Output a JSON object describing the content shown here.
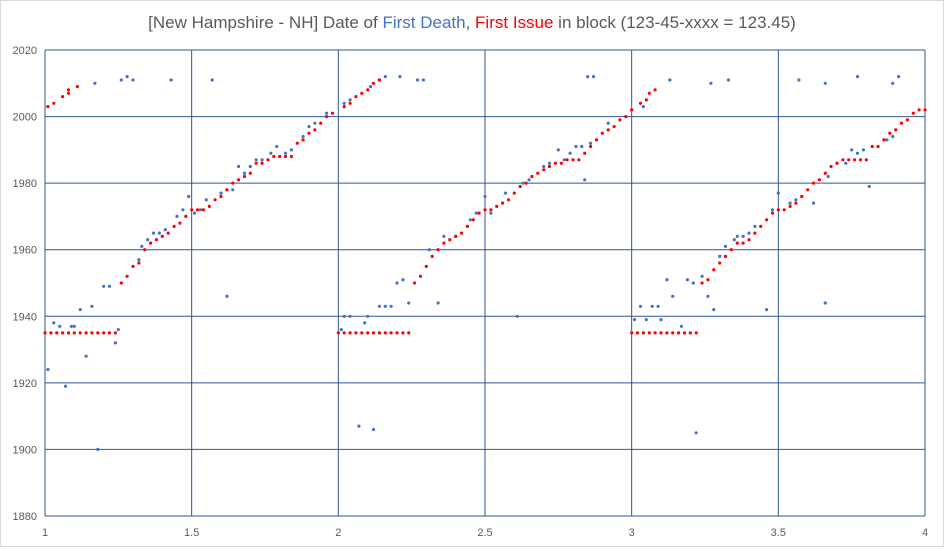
{
  "chart_data": {
    "type": "scatter",
    "title": {
      "prefix": "[New Hampshire - NH] Date of ",
      "first_death": "First Death",
      "sep": ", ",
      "first_issue": "First Issue",
      "suffix": " in block (123-45-xxxx = 123.45)"
    },
    "xlim": [
      1,
      4
    ],
    "ylim": [
      1880,
      2020
    ],
    "x_ticks": [
      "1",
      "1.5",
      "2",
      "2.5",
      "3",
      "3.5",
      "4"
    ],
    "y_ticks": [
      "1880",
      "1900",
      "1920",
      "1940",
      "1960",
      "1980",
      "2000",
      "2020"
    ],
    "grid": true,
    "legend": "none",
    "series": [
      {
        "key": "first_death",
        "color": "#4472C4",
        "points": [
          [
            1.01,
            1924
          ],
          [
            1.03,
            1938
          ],
          [
            1.05,
            1937
          ],
          [
            1.07,
            1919
          ],
          [
            1.09,
            1937
          ],
          [
            1.1,
            1937
          ],
          [
            1.12,
            1942
          ],
          [
            1.14,
            1928
          ],
          [
            1.16,
            1943
          ],
          [
            1.17,
            2010
          ],
          [
            1.18,
            1900
          ],
          [
            1.2,
            1949
          ],
          [
            1.22,
            1949
          ],
          [
            1.24,
            1932
          ],
          [
            1.25,
            1936
          ],
          [
            1.26,
            2011
          ],
          [
            1.28,
            2012
          ],
          [
            1.3,
            2011
          ],
          [
            1.32,
            1957
          ],
          [
            1.33,
            1961
          ],
          [
            1.35,
            1963
          ],
          [
            1.37,
            1965
          ],
          [
            1.39,
            1965
          ],
          [
            1.41,
            1966
          ],
          [
            1.43,
            2011
          ],
          [
            1.45,
            1970
          ],
          [
            1.47,
            1972
          ],
          [
            1.49,
            1976
          ],
          [
            1.51,
            1971
          ],
          [
            1.53,
            1972
          ],
          [
            1.55,
            1975
          ],
          [
            1.57,
            2011
          ],
          [
            1.6,
            1977
          ],
          [
            1.62,
            1946
          ],
          [
            1.62,
            1978
          ],
          [
            1.64,
            1978
          ],
          [
            1.66,
            1985
          ],
          [
            1.68,
            1983
          ],
          [
            1.7,
            1985
          ],
          [
            1.72,
            1987
          ],
          [
            1.74,
            1987
          ],
          [
            1.77,
            1989
          ],
          [
            1.79,
            1991
          ],
          [
            1.82,
            1989
          ],
          [
            1.84,
            1990
          ],
          [
            1.88,
            1994
          ],
          [
            1.9,
            1997
          ],
          [
            1.92,
            1998
          ],
          [
            1.96,
            2001
          ],
          [
            2.01,
            1936
          ],
          [
            2.02,
            1940
          ],
          [
            2.02,
            2004
          ],
          [
            2.04,
            1940
          ],
          [
            2.04,
            2005
          ],
          [
            2.07,
            1907
          ],
          [
            2.09,
            1938
          ],
          [
            2.1,
            1940
          ],
          [
            2.11,
            2009
          ],
          [
            2.12,
            1906
          ],
          [
            2.14,
            2011
          ],
          [
            2.14,
            1943
          ],
          [
            2.16,
            2012
          ],
          [
            2.16,
            1943
          ],
          [
            2.18,
            1943
          ],
          [
            2.2,
            1950
          ],
          [
            2.21,
            2012
          ],
          [
            2.22,
            1951
          ],
          [
            2.24,
            1944
          ],
          [
            2.27,
            2011
          ],
          [
            2.29,
            2011
          ],
          [
            2.31,
            1960
          ],
          [
            2.34,
            1944
          ],
          [
            2.36,
            1964
          ],
          [
            2.4,
            1964
          ],
          [
            2.45,
            1969
          ],
          [
            2.47,
            1971
          ],
          [
            2.5,
            1976
          ],
          [
            2.52,
            1971
          ],
          [
            2.57,
            1977
          ],
          [
            2.61,
            1940
          ],
          [
            2.63,
            1980
          ],
          [
            2.65,
            1981
          ],
          [
            2.7,
            1985
          ],
          [
            2.72,
            1986
          ],
          [
            2.75,
            1990
          ],
          [
            2.77,
            1987
          ],
          [
            2.79,
            1989
          ],
          [
            2.81,
            1991
          ],
          [
            2.83,
            1991
          ],
          [
            2.84,
            1981
          ],
          [
            2.85,
            2012
          ],
          [
            2.86,
            1992
          ],
          [
            2.87,
            2012
          ],
          [
            2.92,
            1998
          ],
          [
            3.01,
            1939
          ],
          [
            3.03,
            1943
          ],
          [
            3.04,
            2003
          ],
          [
            3.05,
            1939
          ],
          [
            3.07,
            1943
          ],
          [
            3.09,
            1943
          ],
          [
            3.1,
            1939
          ],
          [
            3.12,
            1951
          ],
          [
            3.13,
            2011
          ],
          [
            3.14,
            1946
          ],
          [
            3.17,
            1937
          ],
          [
            3.19,
            1951
          ],
          [
            3.21,
            1950
          ],
          [
            3.22,
            1905
          ],
          [
            3.24,
            1952
          ],
          [
            3.26,
            1946
          ],
          [
            3.27,
            2010
          ],
          [
            3.28,
            1942
          ],
          [
            3.3,
            1958
          ],
          [
            3.32,
            1961
          ],
          [
            3.33,
            2011
          ],
          [
            3.35,
            1963
          ],
          [
            3.36,
            1964
          ],
          [
            3.38,
            1964
          ],
          [
            3.4,
            1965
          ],
          [
            3.42,
            1967
          ],
          [
            3.46,
            1942
          ],
          [
            3.48,
            1972
          ],
          [
            3.5,
            1977
          ],
          [
            3.54,
            1974
          ],
          [
            3.56,
            1975
          ],
          [
            3.57,
            2011
          ],
          [
            3.58,
            1976
          ],
          [
            3.62,
            1974
          ],
          [
            3.66,
            1944
          ],
          [
            3.66,
            2010
          ],
          [
            3.67,
            1982
          ],
          [
            3.7,
            1986
          ],
          [
            3.73,
            1986
          ],
          [
            3.75,
            1990
          ],
          [
            3.77,
            1989
          ],
          [
            3.77,
            2012
          ],
          [
            3.79,
            1990
          ],
          [
            3.81,
            1979
          ],
          [
            3.87,
            1993
          ],
          [
            3.89,
            1994
          ],
          [
            3.89,
            2010
          ],
          [
            3.91,
            2012
          ]
        ]
      },
      {
        "key": "first_issue",
        "color": "#FF0000",
        "points": [
          [
            1.01,
            2003
          ],
          [
            1.03,
            2004
          ],
          [
            1.06,
            2006
          ],
          [
            1.08,
            2007
          ],
          [
            1.08,
            2008
          ],
          [
            1.11,
            2009
          ],
          [
            1.0,
            1935
          ],
          [
            1.02,
            1935
          ],
          [
            1.04,
            1935
          ],
          [
            1.06,
            1935
          ],
          [
            1.08,
            1935
          ],
          [
            1.1,
            1935
          ],
          [
            1.12,
            1935
          ],
          [
            1.14,
            1935
          ],
          [
            1.16,
            1935
          ],
          [
            1.18,
            1935
          ],
          [
            1.2,
            1935
          ],
          [
            1.22,
            1935
          ],
          [
            1.24,
            1935
          ],
          [
            1.26,
            1950
          ],
          [
            1.28,
            1952
          ],
          [
            1.3,
            1955
          ],
          [
            1.32,
            1956
          ],
          [
            1.34,
            1960
          ],
          [
            1.36,
            1962
          ],
          [
            1.38,
            1963
          ],
          [
            1.4,
            1964
          ],
          [
            1.42,
            1965
          ],
          [
            1.44,
            1967
          ],
          [
            1.46,
            1968
          ],
          [
            1.48,
            1970
          ],
          [
            1.5,
            1972
          ],
          [
            1.52,
            1972
          ],
          [
            1.54,
            1972
          ],
          [
            1.56,
            1973
          ],
          [
            1.58,
            1975
          ],
          [
            1.6,
            1976
          ],
          [
            1.62,
            1978
          ],
          [
            1.64,
            1980
          ],
          [
            1.66,
            1981
          ],
          [
            1.68,
            1982
          ],
          [
            1.7,
            1983
          ],
          [
            1.72,
            1986
          ],
          [
            1.74,
            1986
          ],
          [
            1.76,
            1987
          ],
          [
            1.78,
            1988
          ],
          [
            1.8,
            1988
          ],
          [
            1.82,
            1988
          ],
          [
            1.84,
            1988
          ],
          [
            1.86,
            1992
          ],
          [
            1.88,
            1993
          ],
          [
            1.9,
            1995
          ],
          [
            1.92,
            1996
          ],
          [
            1.94,
            1998
          ],
          [
            1.96,
            2000
          ],
          [
            1.98,
            2001
          ],
          [
            2.02,
            2003
          ],
          [
            2.04,
            2004
          ],
          [
            2.06,
            2006
          ],
          [
            2.08,
            2007
          ],
          [
            2.1,
            2008
          ],
          [
            2.12,
            2010
          ],
          [
            2.14,
            2011
          ],
          [
            2.0,
            1935
          ],
          [
            2.02,
            1935
          ],
          [
            2.04,
            1935
          ],
          [
            2.06,
            1935
          ],
          [
            2.08,
            1935
          ],
          [
            2.1,
            1935
          ],
          [
            2.12,
            1935
          ],
          [
            2.14,
            1935
          ],
          [
            2.16,
            1935
          ],
          [
            2.18,
            1935
          ],
          [
            2.2,
            1935
          ],
          [
            2.22,
            1935
          ],
          [
            2.24,
            1935
          ],
          [
            2.26,
            1950
          ],
          [
            2.28,
            1952
          ],
          [
            2.3,
            1955
          ],
          [
            2.32,
            1958
          ],
          [
            2.34,
            1960
          ],
          [
            2.36,
            1962
          ],
          [
            2.38,
            1963
          ],
          [
            2.4,
            1964
          ],
          [
            2.42,
            1965
          ],
          [
            2.44,
            1967
          ],
          [
            2.46,
            1969
          ],
          [
            2.48,
            1971
          ],
          [
            2.5,
            1972
          ],
          [
            2.52,
            1972
          ],
          [
            2.54,
            1973
          ],
          [
            2.56,
            1974
          ],
          [
            2.58,
            1975
          ],
          [
            2.6,
            1977
          ],
          [
            2.62,
            1979
          ],
          [
            2.64,
            1980
          ],
          [
            2.66,
            1982
          ],
          [
            2.68,
            1983
          ],
          [
            2.7,
            1984
          ],
          [
            2.72,
            1985
          ],
          [
            2.74,
            1986
          ],
          [
            2.76,
            1986
          ],
          [
            2.78,
            1987
          ],
          [
            2.8,
            1987
          ],
          [
            2.82,
            1987
          ],
          [
            2.84,
            1989
          ],
          [
            2.86,
            1991
          ],
          [
            2.88,
            1993
          ],
          [
            2.9,
            1995
          ],
          [
            2.92,
            1996
          ],
          [
            2.94,
            1997
          ],
          [
            2.96,
            1999
          ],
          [
            2.98,
            2000
          ],
          [
            3.0,
            2002
          ],
          [
            3.03,
            2004
          ],
          [
            3.05,
            2005
          ],
          [
            3.06,
            2007
          ],
          [
            3.08,
            2008
          ],
          [
            3.0,
            1935
          ],
          [
            3.02,
            1935
          ],
          [
            3.04,
            1935
          ],
          [
            3.06,
            1935
          ],
          [
            3.08,
            1935
          ],
          [
            3.1,
            1935
          ],
          [
            3.12,
            1935
          ],
          [
            3.14,
            1935
          ],
          [
            3.16,
            1935
          ],
          [
            3.18,
            1935
          ],
          [
            3.2,
            1935
          ],
          [
            3.22,
            1935
          ],
          [
            3.24,
            1950
          ],
          [
            3.26,
            1951
          ],
          [
            3.28,
            1954
          ],
          [
            3.3,
            1956
          ],
          [
            3.32,
            1958
          ],
          [
            3.34,
            1960
          ],
          [
            3.36,
            1962
          ],
          [
            3.38,
            1962
          ],
          [
            3.4,
            1963
          ],
          [
            3.42,
            1965
          ],
          [
            3.44,
            1967
          ],
          [
            3.46,
            1969
          ],
          [
            3.48,
            1971
          ],
          [
            3.5,
            1972
          ],
          [
            3.52,
            1972
          ],
          [
            3.54,
            1973
          ],
          [
            3.56,
            1974
          ],
          [
            3.58,
            1976
          ],
          [
            3.6,
            1978
          ],
          [
            3.62,
            1980
          ],
          [
            3.64,
            1981
          ],
          [
            3.66,
            1983
          ],
          [
            3.68,
            1985
          ],
          [
            3.7,
            1986
          ],
          [
            3.72,
            1987
          ],
          [
            3.74,
            1987
          ],
          [
            3.76,
            1987
          ],
          [
            3.78,
            1987
          ],
          [
            3.8,
            1987
          ],
          [
            3.82,
            1991
          ],
          [
            3.84,
            1991
          ],
          [
            3.86,
            1993
          ],
          [
            3.88,
            1995
          ],
          [
            3.9,
            1996
          ],
          [
            3.92,
            1998
          ],
          [
            3.94,
            1999
          ],
          [
            3.96,
            2001
          ],
          [
            3.98,
            2002
          ],
          [
            4.0,
            2002
          ]
        ]
      }
    ]
  }
}
